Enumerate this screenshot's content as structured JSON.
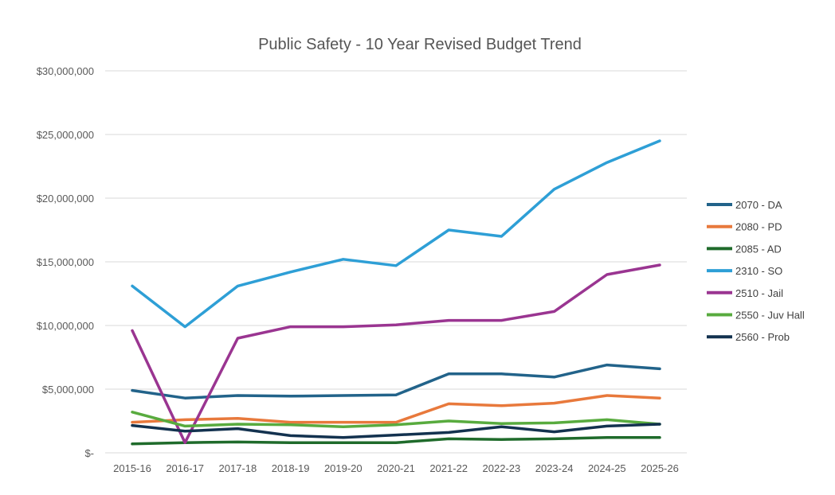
{
  "chart_data": {
    "type": "line",
    "title": "Public Safety - 10 Year Revised Budget Trend",
    "xlabel": "",
    "ylabel": "",
    "categories": [
      "2015-16",
      "2016-17",
      "2017-18",
      "2018-19",
      "2019-20",
      "2020-21",
      "2021-22",
      "2022-23",
      "2023-24",
      "2024-25",
      "2025-26"
    ],
    "ylim": [
      0,
      30000000
    ],
    "yticks": [
      0,
      5000000,
      10000000,
      15000000,
      20000000,
      25000000,
      30000000
    ],
    "ytick_labels": [
      "$-",
      "$5,000,000",
      "$10,000,000",
      "$15,000,000",
      "$20,000,000",
      "$25,000,000",
      "$30,000,000"
    ],
    "grid": true,
    "legend_position": "right",
    "series": [
      {
        "name": "2070 - DA",
        "color": "#22638a",
        "values": [
          4900000,
          4300000,
          4500000,
          4450000,
          4500000,
          4550000,
          6200000,
          6200000,
          5950000,
          6900000,
          6600000
        ]
      },
      {
        "name": "2080 - PD",
        "color": "#e8793c",
        "values": [
          2400000,
          2600000,
          2700000,
          2400000,
          2400000,
          2400000,
          3850000,
          3700000,
          3900000,
          4500000,
          4300000
        ]
      },
      {
        "name": "2085 - AD",
        "color": "#1f6b2b",
        "values": [
          700000,
          800000,
          850000,
          800000,
          800000,
          800000,
          1100000,
          1050000,
          1100000,
          1200000,
          1200000
        ]
      },
      {
        "name": "2310 - SO",
        "color": "#2e9fd6",
        "values": [
          13100000,
          9900000,
          13100000,
          14200000,
          15200000,
          14700000,
          17500000,
          17000000,
          20700000,
          22800000,
          24500000
        ]
      },
      {
        "name": "2510 - Jail",
        "color": "#9a3591",
        "values": [
          9600000,
          800000,
          9000000,
          9900000,
          9900000,
          10050000,
          10400000,
          10400000,
          11100000,
          14000000,
          14750000
        ]
      },
      {
        "name": "2550 - Juv Hall",
        "color": "#58ab3e",
        "values": [
          3200000,
          2100000,
          2250000,
          2200000,
          2050000,
          2200000,
          2500000,
          2300000,
          2350000,
          2600000,
          2250000
        ]
      },
      {
        "name": "2560 - Prob",
        "color": "#13324f",
        "values": [
          2150000,
          1700000,
          1900000,
          1350000,
          1200000,
          1400000,
          1600000,
          2050000,
          1650000,
          2100000,
          2250000
        ]
      }
    ]
  }
}
